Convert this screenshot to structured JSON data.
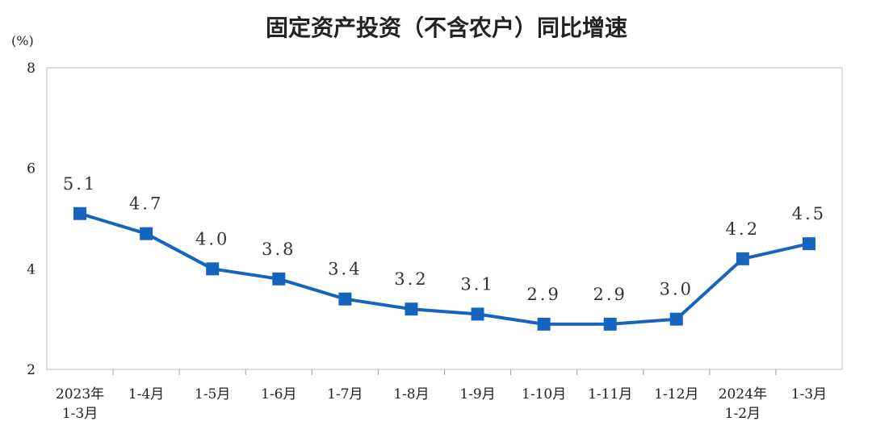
{
  "chart_data": {
    "type": "line",
    "title": "固定资产投资（不含农户）同比增速",
    "unit": "(%)",
    "ylim": [
      2,
      8
    ],
    "yticks": [
      "2",
      "4",
      "6",
      "8"
    ],
    "grid": false,
    "categories": [
      [
        "2023年",
        "1-3月"
      ],
      [
        "1-4月"
      ],
      [
        "1-5月"
      ],
      [
        "1-6月"
      ],
      [
        "1-7月"
      ],
      [
        "1-8月"
      ],
      [
        "1-9月"
      ],
      [
        "1-10月"
      ],
      [
        "1-11月"
      ],
      [
        "1-12月"
      ],
      [
        "2024年",
        "1-2月"
      ],
      [
        "1-3月"
      ]
    ],
    "series": [
      {
        "values": [
          5.1,
          4.7,
          4.0,
          3.8,
          3.4,
          3.2,
          3.1,
          2.9,
          2.9,
          3.0,
          4.2,
          4.5
        ],
        "labels": [
          "5.1",
          "4.7",
          "4.0",
          "3.8",
          "3.4",
          "3.2",
          "3.1",
          "2.9",
          "2.9",
          "3.0",
          "4.2",
          "4.5"
        ],
        "color": "#1565C0",
        "marker": "square"
      }
    ]
  }
}
